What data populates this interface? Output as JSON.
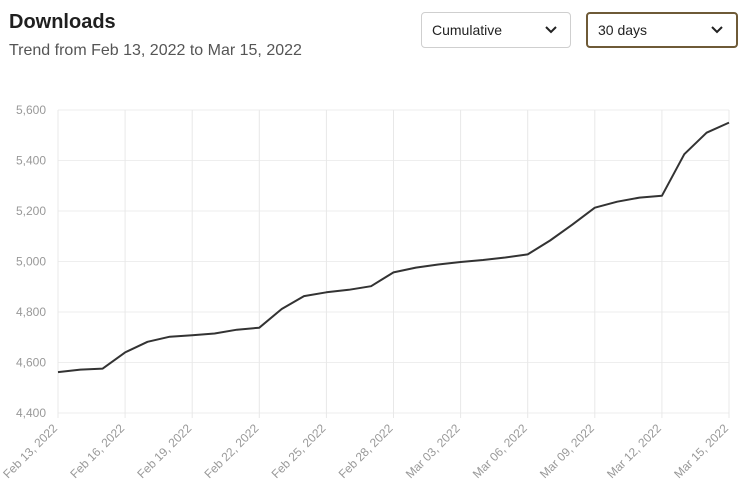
{
  "header": {
    "title": "Downloads",
    "subtitle": "Trend from Feb 13, 2022 to Mar 15, 2022"
  },
  "controls": {
    "mode_select": {
      "value": "Cumulative",
      "icon": "chevron-down-icon"
    },
    "range_select": {
      "value": "30 days",
      "icon": "chevron-down-icon"
    }
  },
  "chart_data": {
    "type": "line",
    "title": "",
    "xlabel": "",
    "ylabel": "",
    "ylim": [
      4400,
      5600
    ],
    "y_ticks": [
      "5,600",
      "5,400",
      "5,200",
      "5,000",
      "4,800",
      "4,600",
      "4,400"
    ],
    "y_tick_values": [
      5600,
      5400,
      5200,
      5000,
      4800,
      4600,
      4400
    ],
    "x_ticks": [
      "Feb 13, 2022",
      "Feb 16, 2022",
      "Feb 19, 2022",
      "Feb 22, 2022",
      "Feb 25, 2022",
      "Feb 28, 2022",
      "Mar 03, 2022",
      "Mar 06, 2022",
      "Mar 09, 2022",
      "Mar 12, 2022",
      "Mar 15, 2022"
    ],
    "grid": true,
    "line_color": "#333333",
    "series": [
      {
        "x": [
          "Feb 13, 2022",
          "Feb 14, 2022",
          "Feb 15, 2022",
          "Feb 16, 2022",
          "Feb 17, 2022",
          "Feb 18, 2022",
          "Feb 19, 2022",
          "Feb 20, 2022",
          "Feb 21, 2022",
          "Feb 22, 2022",
          "Feb 23, 2022",
          "Feb 24, 2022",
          "Feb 25, 2022",
          "Feb 26, 2022",
          "Feb 27, 2022",
          "Feb 28, 2022",
          "Mar 01, 2022",
          "Mar 02, 2022",
          "Mar 03, 2022",
          "Mar 04, 2022",
          "Mar 05, 2022",
          "Mar 06, 2022",
          "Mar 07, 2022",
          "Mar 08, 2022",
          "Mar 09, 2022",
          "Mar 10, 2022",
          "Mar 11, 2022",
          "Mar 12, 2022",
          "Mar 13, 2022",
          "Mar 14, 2022",
          "Mar 15, 2022"
        ],
        "values": [
          4562,
          4572,
          4576,
          4640,
          4682,
          4702,
          4708,
          4715,
          4730,
          4738,
          4812,
          4863,
          4878,
          4888,
          4902,
          4957,
          4976,
          4988,
          4998,
          5006,
          5016,
          5028,
          5083,
          5146,
          5213,
          5237,
          5253,
          5260,
          5425,
          5510,
          5550
        ]
      }
    ]
  }
}
